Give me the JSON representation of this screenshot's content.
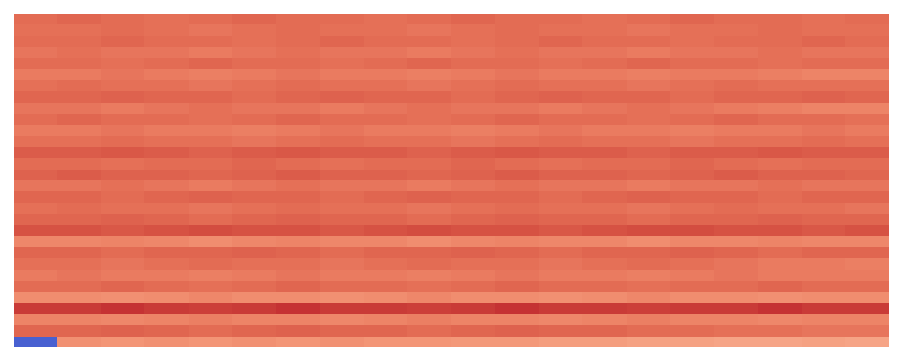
{
  "chart_data": {
    "type": "heatmap",
    "color": "coolwarm",
    "color_range": [
      0,
      100
    ],
    "tick_labels": false,
    "cells": [
      [
        85,
        86,
        85,
        84,
        85,
        86,
        85,
        85,
        84,
        85,
        86,
        85,
        85,
        84,
        85,
        86,
        85,
        85,
        84,
        85
      ],
      [
        84,
        84,
        85,
        84,
        83,
        84,
        85,
        84,
        84,
        83,
        84,
        85,
        84,
        84,
        83,
        84,
        84,
        85,
        84,
        84
      ],
      [
        85,
        85,
        86,
        85,
        85,
        84,
        85,
        86,
        85,
        85,
        84,
        85,
        86,
        85,
        85,
        84,
        85,
        85,
        86,
        85
      ],
      [
        83,
        84,
        83,
        83,
        82,
        83,
        84,
        83,
        83,
        82,
        83,
        84,
        83,
        83,
        82,
        83,
        83,
        84,
        83,
        83
      ],
      [
        85,
        85,
        84,
        85,
        86,
        85,
        85,
        84,
        85,
        86,
        85,
        85,
        84,
        85,
        86,
        85,
        85,
        84,
        85,
        85
      ],
      [
        82,
        82,
        83,
        82,
        81,
        82,
        83,
        82,
        82,
        81,
        82,
        83,
        82,
        82,
        81,
        82,
        82,
        81,
        80,
        80
      ],
      [
        84,
        85,
        84,
        84,
        83,
        84,
        85,
        84,
        84,
        83,
        84,
        85,
        84,
        84,
        83,
        84,
        85,
        84,
        84,
        84
      ],
      [
        86,
        86,
        87,
        86,
        86,
        85,
        86,
        87,
        86,
        86,
        85,
        86,
        87,
        86,
        86,
        85,
        86,
        86,
        87,
        86
      ],
      [
        83,
        83,
        82,
        83,
        84,
        83,
        83,
        82,
        83,
        84,
        83,
        83,
        82,
        83,
        84,
        83,
        82,
        81,
        80,
        80
      ],
      [
        85,
        86,
        85,
        85,
        84,
        85,
        86,
        85,
        85,
        84,
        85,
        86,
        85,
        85,
        84,
        85,
        86,
        85,
        85,
        84
      ],
      [
        82,
        82,
        83,
        82,
        82,
        81,
        82,
        83,
        82,
        82,
        81,
        82,
        83,
        82,
        82,
        81,
        82,
        82,
        83,
        82
      ],
      [
        84,
        84,
        85,
        84,
        84,
        83,
        84,
        85,
        84,
        84,
        83,
        84,
        85,
        84,
        84,
        83,
        84,
        84,
        85,
        84
      ],
      [
        88,
        88,
        89,
        88,
        87,
        88,
        89,
        88,
        88,
        87,
        88,
        89,
        88,
        88,
        87,
        88,
        88,
        89,
        88,
        88
      ],
      [
        85,
        85,
        84,
        85,
        85,
        86,
        85,
        84,
        85,
        85,
        86,
        85,
        84,
        85,
        85,
        86,
        85,
        84,
        85,
        85
      ],
      [
        87,
        88,
        87,
        87,
        86,
        87,
        88,
        87,
        87,
        86,
        87,
        88,
        87,
        87,
        86,
        87,
        88,
        87,
        87,
        86
      ],
      [
        83,
        83,
        84,
        83,
        82,
        83,
        84,
        83,
        83,
        82,
        83,
        84,
        83,
        83,
        82,
        83,
        83,
        84,
        83,
        83
      ],
      [
        86,
        86,
        85,
        86,
        87,
        86,
        86,
        85,
        86,
        87,
        86,
        86,
        85,
        86,
        87,
        86,
        86,
        85,
        86,
        86
      ],
      [
        84,
        85,
        84,
        84,
        83,
        84,
        85,
        84,
        84,
        83,
        84,
        85,
        84,
        84,
        83,
        84,
        85,
        84,
        84,
        83
      ],
      [
        86,
        86,
        87,
        86,
        85,
        86,
        87,
        86,
        86,
        85,
        86,
        87,
        86,
        86,
        85,
        86,
        86,
        87,
        86,
        86
      ],
      [
        90,
        90,
        89,
        90,
        91,
        90,
        90,
        89,
        90,
        91,
        90,
        90,
        89,
        90,
        91,
        91,
        90,
        90,
        89,
        90
      ],
      [
        79,
        79,
        80,
        79,
        78,
        79,
        80,
        79,
        79,
        78,
        79,
        80,
        79,
        79,
        78,
        79,
        79,
        80,
        79,
        79
      ],
      [
        86,
        86,
        85,
        86,
        86,
        87,
        86,
        85,
        86,
        86,
        87,
        86,
        85,
        86,
        86,
        87,
        86,
        85,
        86,
        86
      ],
      [
        84,
        84,
        83,
        84,
        85,
        84,
        84,
        83,
        84,
        85,
        84,
        84,
        83,
        84,
        85,
        84,
        83,
        82,
        82,
        81
      ],
      [
        82,
        83,
        82,
        82,
        81,
        82,
        83,
        82,
        82,
        81,
        82,
        83,
        82,
        82,
        81,
        82,
        83,
        82,
        82,
        82
      ],
      [
        85,
        85,
        86,
        85,
        84,
        85,
        86,
        85,
        85,
        84,
        85,
        86,
        85,
        85,
        84,
        85,
        85,
        86,
        85,
        85
      ],
      [
        78,
        78,
        77,
        78,
        79,
        78,
        78,
        77,
        78,
        79,
        78,
        78,
        77,
        78,
        79,
        78,
        78,
        77,
        78,
        78
      ],
      [
        94,
        94,
        95,
        94,
        93,
        94,
        95,
        94,
        94,
        93,
        94,
        95,
        94,
        94,
        93,
        94,
        94,
        95,
        94,
        94
      ],
      [
        80,
        80,
        79,
        80,
        81,
        80,
        80,
        79,
        80,
        81,
        80,
        80,
        79,
        80,
        81,
        80,
        80,
        79,
        80,
        80
      ],
      [
        86,
        86,
        87,
        86,
        85,
        86,
        87,
        86,
        86,
        85,
        86,
        87,
        86,
        86,
        85,
        85,
        84,
        84,
        83,
        83
      ],
      [
        5,
        77,
        76,
        77,
        76,
        77,
        76,
        77,
        76,
        76,
        75,
        75,
        74,
        74,
        73,
        73,
        72,
        72,
        73,
        72
      ]
    ]
  }
}
